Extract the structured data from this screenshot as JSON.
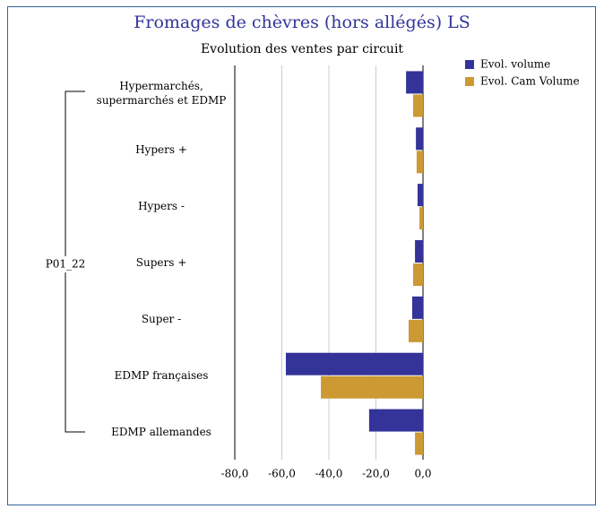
{
  "chart_data": {
    "type": "hbar",
    "title": "Fromages de chèvres (hors allégés) LS",
    "subtitle": "Evolution des ventes par circuit",
    "group_label": "P01_22",
    "categories": [
      "Hypermarchés, supermarchés et EDMP",
      "Hypers +",
      "Hypers -",
      "Supers +",
      "Super -",
      "EDMP françaises",
      "EDMP allemandes"
    ],
    "series": [
      {
        "name": "Evol. volume",
        "color": "#333399",
        "values": [
          -7.2,
          -3.0,
          -2.3,
          -3.4,
          -4.6,
          -58.3,
          -22.9
        ]
      },
      {
        "name": "Evol. Cam Volume",
        "color": "#cc9933",
        "values": [
          -4.2,
          -2.7,
          -1.5,
          -4.2,
          -6.1,
          -43.4,
          -3.4
        ]
      }
    ],
    "xlim": [
      -80,
      0
    ],
    "xticks": [
      {
        "value": -80,
        "label": "-80,0"
      },
      {
        "value": -60,
        "label": "-60,0"
      },
      {
        "value": -40,
        "label": "-40,0"
      },
      {
        "value": -20,
        "label": "-20,0"
      },
      {
        "value": 0,
        "label": "0,0"
      }
    ],
    "grid": true,
    "legend": "top-right"
  }
}
